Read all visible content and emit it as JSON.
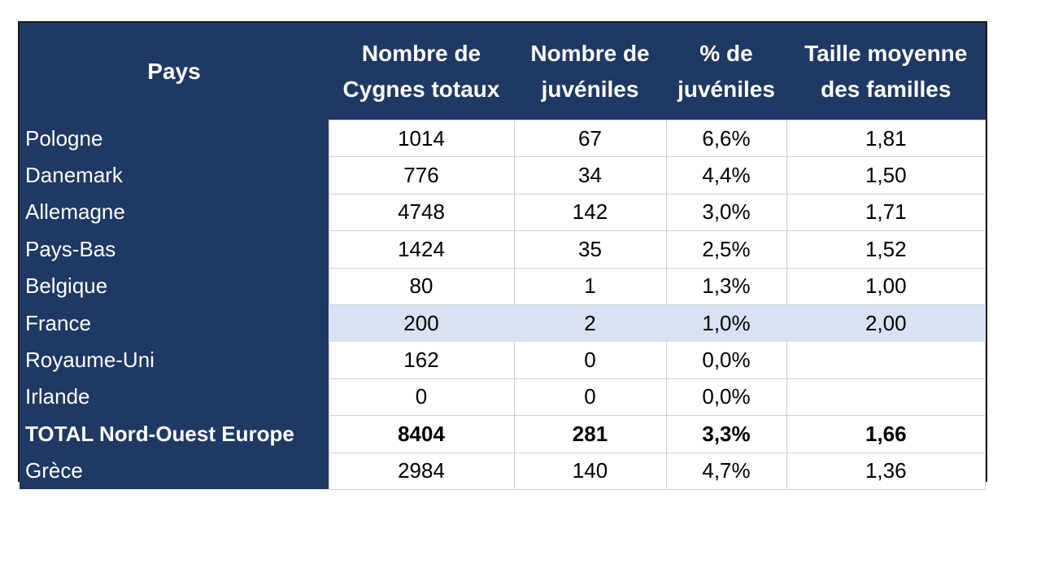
{
  "table": {
    "headers": [
      [
        "Pays"
      ],
      [
        "Nombre de",
        "Cygnes totaux"
      ],
      [
        "Nombre de",
        "juvéniles"
      ],
      [
        "% de",
        "juvéniles"
      ],
      [
        "Taille moyenne",
        "des familles"
      ]
    ],
    "rows": [
      {
        "cells": [
          "Pologne",
          "1014",
          "67",
          "6,6%",
          "1,81"
        ]
      },
      {
        "cells": [
          "Danemark",
          "776",
          "34",
          "4,4%",
          "1,50"
        ]
      },
      {
        "cells": [
          "Allemagne",
          "4748",
          "142",
          "3,0%",
          "1,71"
        ]
      },
      {
        "cells": [
          "Pays-Bas",
          "1424",
          "35",
          "2,5%",
          "1,52"
        ]
      },
      {
        "cells": [
          "Belgique",
          "80",
          "1",
          "1,3%",
          "1,00"
        ]
      },
      {
        "cells": [
          "France",
          "200",
          "2",
          "1,0%",
          "2,00"
        ],
        "highlight": true
      },
      {
        "cells": [
          "Royaume-Uni",
          "162",
          "0",
          "0,0%",
          null
        ]
      },
      {
        "cells": [
          "Irlande",
          "0",
          "0",
          "0,0%",
          null
        ]
      },
      {
        "cells": [
          "TOTAL Nord-Ouest Europe",
          "8404",
          "281",
          "3,3%",
          "1,66"
        ],
        "bold": true
      },
      {
        "cells": [
          "Grèce",
          "2984",
          "140",
          "4,7%",
          "1,36"
        ]
      }
    ]
  }
}
